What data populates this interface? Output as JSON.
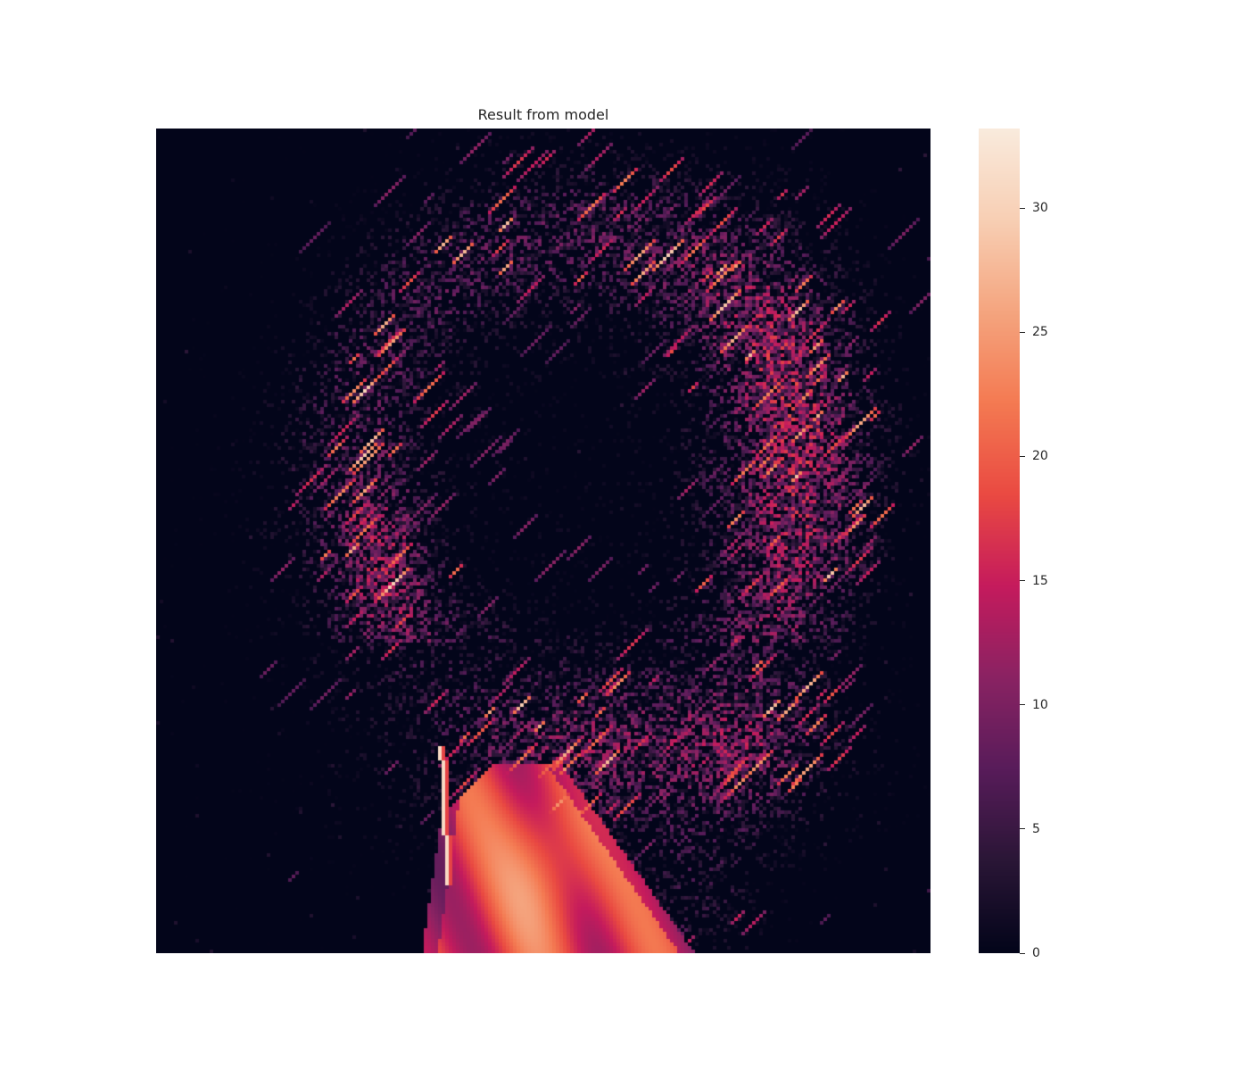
{
  "chart_data": {
    "type": "heatmap",
    "title": "Result from model",
    "xlabel": "",
    "ylabel": "",
    "colormap": "rocket",
    "color_range": [
      0,
      33.2
    ],
    "colorbar": {
      "ticks": [
        0,
        5,
        10,
        15,
        20,
        25,
        30
      ],
      "tick_labels": [
        "0",
        "5",
        "10",
        "15",
        "20",
        "25",
        "30"
      ]
    },
    "grid": false,
    "axes_visible": false,
    "colormap_stops": [
      "#03051a",
      "#2a1636",
      "#581c5a",
      "#8a2363",
      "#c51b5d",
      "#ea4a42",
      "#f47a52",
      "#f5a57f",
      "#f8cfb4",
      "#faebdd"
    ]
  }
}
